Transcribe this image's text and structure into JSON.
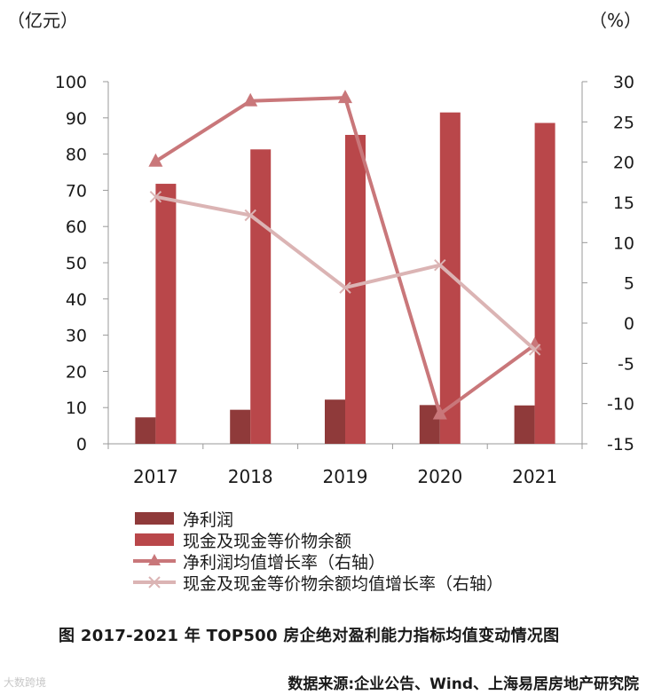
{
  "chart_data": {
    "type": "bar+line",
    "categories": [
      "2017",
      "2018",
      "2019",
      "2020",
      "2021"
    ],
    "left_axis": {
      "unit": "（亿元）",
      "ylim": [
        0,
        100
      ],
      "ticks": [
        0,
        10,
        20,
        30,
        40,
        50,
        60,
        70,
        80,
        90,
        100
      ]
    },
    "right_axis": {
      "unit": "（%）",
      "ylim": [
        -15,
        30
      ],
      "ticks": [
        -15,
        -10,
        -5,
        0,
        5,
        10,
        15,
        20,
        25,
        30
      ]
    },
    "series": [
      {
        "name": "净利润",
        "kind": "bar",
        "axis": "left",
        "color": "#8f3a3a",
        "values": [
          7.3,
          9.4,
          12.2,
          10.7,
          10.6
        ]
      },
      {
        "name": "现金及现金等价物余额",
        "kind": "bar",
        "axis": "left",
        "color": "#b9474a",
        "values": [
          71.8,
          81.3,
          85.3,
          91.5,
          88.6
        ]
      },
      {
        "name": "净利润均值增长率（右轴）",
        "kind": "line",
        "marker": "triangle",
        "axis": "right",
        "color": "#c9777a",
        "values": [
          20.1,
          27.6,
          28.0,
          -11.3,
          -2.7
        ]
      },
      {
        "name": "现金及现金等价物余额均值增长率（右轴）",
        "kind": "line",
        "marker": "x",
        "axis": "right",
        "color": "#dbb4b4",
        "values": [
          15.7,
          13.4,
          4.4,
          7.2,
          -3.3
        ]
      }
    ]
  },
  "caption": "图  2017-2021 年 TOP500 房企绝对盈利能力指标均值变动情况图",
  "source": "数据来源:企业公告、Wind、上海易居房地产研究院",
  "watermark": "大数跨境"
}
